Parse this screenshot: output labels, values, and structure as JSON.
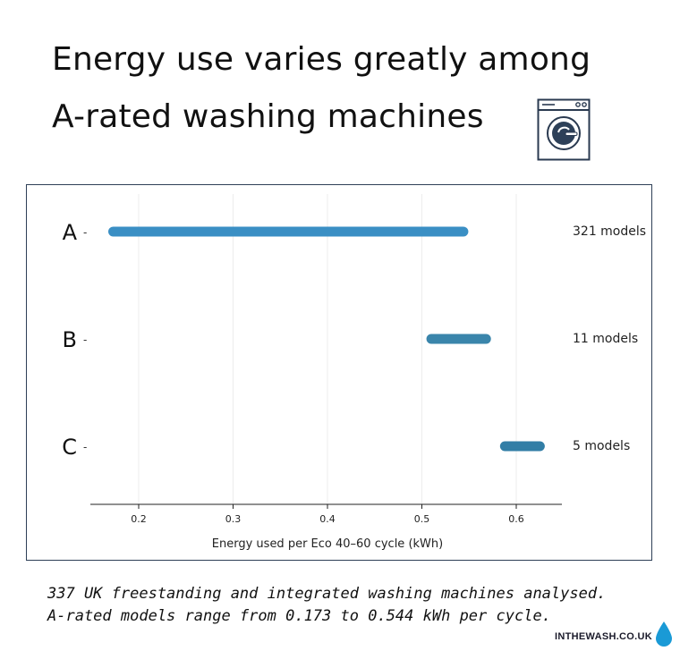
{
  "header": {
    "title_line1": "Energy use varies greatly among",
    "title_line2": "A-rated washing machines",
    "icon": "washing-machine-icon"
  },
  "chart_data": {
    "type": "range-bar",
    "xlabel": "Energy used per Eco 40–60 cycle (kWh)",
    "xlim": [
      0.15,
      0.65
    ],
    "xticks": [
      0.2,
      0.3,
      0.4,
      0.5,
      0.6
    ],
    "xtick_labels": [
      "0.2",
      "0.3",
      "0.4",
      "0.5",
      "0.6"
    ],
    "grid": "vertical",
    "categories": [
      "A",
      "B",
      "C"
    ],
    "ranges": [
      {
        "category": "A",
        "min": 0.173,
        "max": 0.544,
        "count_label": "321 models",
        "color": "#3a8fc4"
      },
      {
        "category": "B",
        "min": 0.51,
        "max": 0.568,
        "count_label": "11 models",
        "color": "#3a85ab"
      },
      {
        "category": "C",
        "min": 0.588,
        "max": 0.625,
        "count_label": "5 models",
        "color": "#327ea6"
      }
    ]
  },
  "caption": {
    "line1": "337 UK freestanding and integrated washing machines analysed.",
    "line2": "A-rated models range from 0.173 to 0.544 kWh per cycle."
  },
  "footer": {
    "brand": "INTHEWASH.CO.UK",
    "brand_icon": "water-drop-icon",
    "drop_color": "#1a9ad6"
  }
}
